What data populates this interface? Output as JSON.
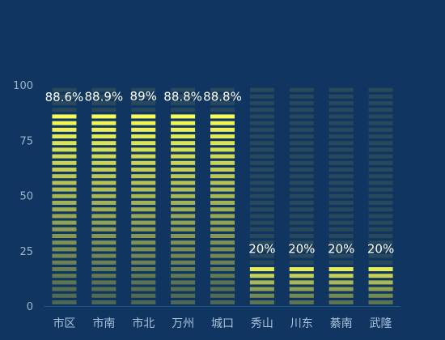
{
  "chart_data": {
    "type": "bar",
    "categories": [
      "市区",
      "市南",
      "市北",
      "万州",
      "城口",
      "秀山",
      "川东",
      "綦南",
      "武隆"
    ],
    "values": [
      88.6,
      88.9,
      89,
      88.8,
      88.8,
      20,
      20,
      20,
      20
    ],
    "value_labels": [
      "88.6%",
      "88.9%",
      "89%",
      "88.8%",
      "88.8%",
      "20%",
      "20%",
      "20%",
      "20%"
    ],
    "ylim": [
      0,
      100
    ],
    "yticks": [
      "0",
      "25",
      "50",
      "75",
      "100"
    ],
    "background_bar_max": 100,
    "grid": false,
    "colors": {
      "background": "#0f3560",
      "track": "#2b4a5c",
      "bar_bottom": "#4a6452",
      "bar_top": "#fbff55",
      "axis": "#1f5a8a"
    }
  }
}
